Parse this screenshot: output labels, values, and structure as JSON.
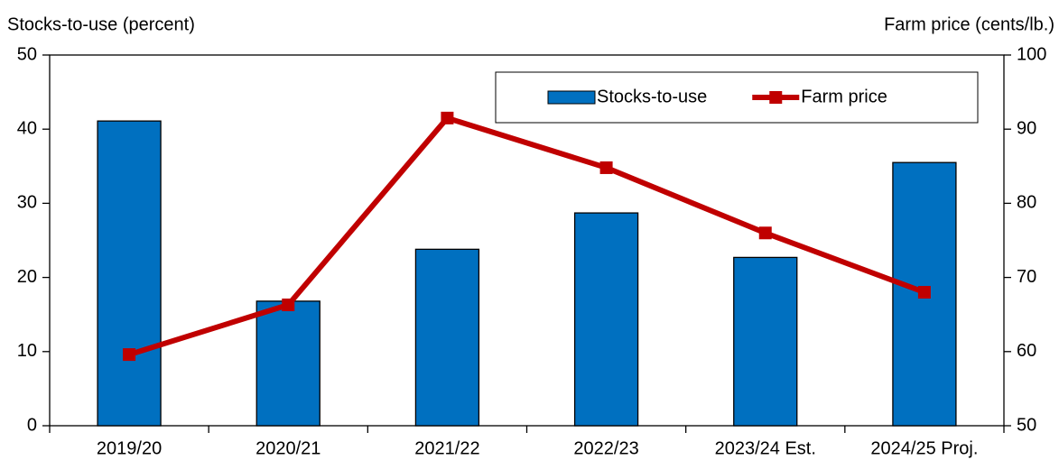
{
  "chart_data": {
    "type": "bar_line",
    "y_label": "Stocks-to-use (percent)",
    "y2_label": "Farm price (cents/lb.)",
    "categories": [
      "2019/20",
      "2020/21",
      "2021/22",
      "2022/23",
      "2023/24 Est.",
      "2024/25 Proj."
    ],
    "series": [
      {
        "name": "Stocks-to-use",
        "type": "bar",
        "color": "#0070c0",
        "values": [
          41.1,
          16.8,
          23.8,
          28.7,
          22.7,
          35.5
        ]
      },
      {
        "name": "Farm price",
        "type": "line",
        "axis": "y2",
        "color": "#c00000",
        "values": [
          59.6,
          66.3,
          91.5,
          84.8,
          76.0,
          68.0
        ]
      }
    ],
    "ylim": [
      0,
      50
    ],
    "yticks": [
      0,
      10,
      20,
      30,
      40,
      50
    ],
    "y2lim": [
      50,
      100
    ],
    "y2ticks": [
      50,
      60,
      70,
      80,
      90,
      100
    ],
    "grid": false,
    "legend": "upper right"
  }
}
